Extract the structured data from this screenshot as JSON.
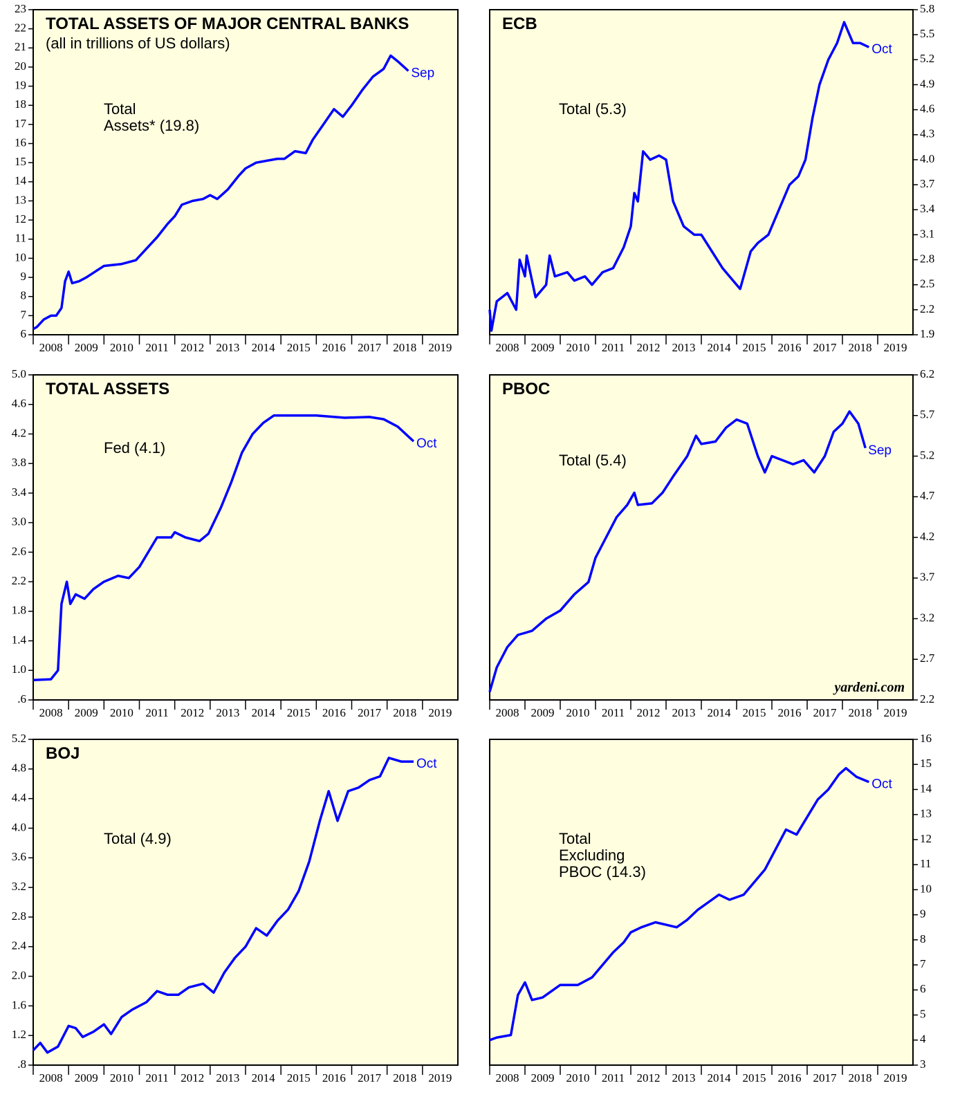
{
  "chart_data": [
    {
      "type": "line",
      "title": "TOTAL ASSETS OF MAJOR CENTRAL BANKS",
      "subtitle": "(all in trillions of US dollars)",
      "annotation": [
        "Total",
        "Assets* (19.8)"
      ],
      "end_label": "Sep",
      "color": "#0000ff",
      "background": "#ffffe0",
      "y_axis_side": "left",
      "x": [
        2008.0,
        2008.1,
        2008.3,
        2008.5,
        2008.65,
        2008.8,
        2008.9,
        2009.0,
        2009.1,
        2009.3,
        2009.5,
        2009.75,
        2010.0,
        2010.5,
        2010.9,
        2011.2,
        2011.5,
        2011.8,
        2012.0,
        2012.2,
        2012.5,
        2012.8,
        2013.0,
        2013.2,
        2013.5,
        2013.8,
        2014.0,
        2014.3,
        2014.6,
        2014.9,
        2015.1,
        2015.4,
        2015.7,
        2015.9,
        2016.2,
        2016.5,
        2016.75,
        2017.0,
        2017.3,
        2017.6,
        2017.9,
        2018.1,
        2018.3,
        2018.6
      ],
      "values": [
        6.3,
        6.4,
        6.8,
        7.0,
        7.0,
        7.4,
        8.8,
        9.3,
        8.7,
        8.8,
        9.0,
        9.3,
        9.6,
        9.7,
        9.9,
        10.5,
        11.1,
        11.8,
        12.2,
        12.8,
        13.0,
        13.1,
        13.3,
        13.1,
        13.6,
        14.3,
        14.7,
        15.0,
        15.1,
        15.2,
        15.2,
        15.6,
        15.5,
        16.2,
        17.0,
        17.8,
        17.4,
        18.0,
        18.8,
        19.5,
        19.9,
        20.6,
        20.3,
        19.8
      ],
      "xlim": [
        2008,
        2020
      ],
      "xticks": [
        2008,
        2009,
        2010,
        2011,
        2012,
        2013,
        2014,
        2015,
        2016,
        2017,
        2018,
        2019
      ],
      "ylim": [
        6,
        23
      ],
      "yticks": [
        6,
        7,
        8,
        9,
        10,
        11,
        12,
        13,
        14,
        15,
        16,
        17,
        18,
        19,
        20,
        21,
        22,
        23
      ]
    },
    {
      "type": "line",
      "title": "ECB",
      "annotation": [
        "Total (5.3)"
      ],
      "end_label": "Oct",
      "color": "#0000ff",
      "background": "#ffffe0",
      "y_axis_side": "right",
      "x": [
        2008.0,
        2008.05,
        2008.2,
        2008.5,
        2008.75,
        2008.85,
        2009.0,
        2009.05,
        2009.3,
        2009.6,
        2009.7,
        2009.85,
        2010.2,
        2010.4,
        2010.7,
        2010.9,
        2011.2,
        2011.5,
        2011.8,
        2012.0,
        2012.1,
        2012.2,
        2012.35,
        2012.55,
        2012.8,
        2013.0,
        2013.2,
        2013.5,
        2013.8,
        2014.0,
        2014.3,
        2014.6,
        2014.9,
        2015.1,
        2015.4,
        2015.6,
        2015.9,
        2016.2,
        2016.5,
        2016.75,
        2016.95,
        2017.15,
        2017.35,
        2017.6,
        2017.85,
        2018.05,
        2018.3,
        2018.5,
        2018.75
      ],
      "values": [
        2.2,
        1.95,
        2.3,
        2.4,
        2.2,
        2.8,
        2.6,
        2.85,
        2.35,
        2.5,
        2.85,
        2.6,
        2.65,
        2.55,
        2.6,
        2.5,
        2.65,
        2.7,
        2.95,
        3.2,
        3.6,
        3.5,
        4.1,
        4.0,
        4.05,
        4.0,
        3.5,
        3.2,
        3.1,
        3.1,
        2.9,
        2.7,
        2.55,
        2.45,
        2.9,
        3.0,
        3.1,
        3.4,
        3.7,
        3.8,
        4.0,
        4.5,
        4.9,
        5.2,
        5.4,
        5.65,
        5.4,
        5.4,
        5.35
      ],
      "xlim": [
        2008,
        2020
      ],
      "xticks": [
        2008,
        2009,
        2010,
        2011,
        2012,
        2013,
        2014,
        2015,
        2016,
        2017,
        2018,
        2019
      ],
      "ylim": [
        1.9,
        5.8
      ],
      "yticks": [
        1.9,
        2.2,
        2.5,
        2.8,
        3.1,
        3.4,
        3.7,
        {
          "value": 4,
          "label": "4.0"
        },
        4.3,
        4.6,
        4.9,
        5.2,
        5.5,
        5.8
      ]
    },
    {
      "type": "line",
      "title": "TOTAL ASSETS",
      "annotation": [
        "Fed (4.1)"
      ],
      "end_label": "Oct",
      "color": "#0000ff",
      "background": "#ffffe0",
      "y_axis_side": "left",
      "x": [
        2008.0,
        2008.5,
        2008.7,
        2008.8,
        2008.95,
        2009.05,
        2009.2,
        2009.45,
        2009.7,
        2010.0,
        2010.4,
        2010.7,
        2011.0,
        2011.25,
        2011.5,
        2011.9,
        2012.0,
        2012.3,
        2012.7,
        2012.95,
        2013.3,
        2013.6,
        2013.9,
        2014.2,
        2014.5,
        2014.8,
        2015.5,
        2016.0,
        2016.8,
        2017.5,
        2017.9,
        2018.3,
        2018.75
      ],
      "values": [
        0.87,
        0.88,
        1.0,
        1.9,
        2.2,
        1.9,
        2.03,
        1.97,
        2.1,
        2.2,
        2.28,
        2.25,
        2.4,
        2.6,
        2.8,
        2.8,
        2.87,
        2.8,
        2.75,
        2.85,
        3.2,
        3.55,
        3.95,
        4.2,
        4.35,
        4.45,
        4.45,
        4.45,
        4.42,
        4.43,
        4.4,
        4.3,
        4.1
      ],
      "xlim": [
        2008,
        2020
      ],
      "xticks": [
        2008,
        2009,
        2010,
        2011,
        2012,
        2013,
        2014,
        2015,
        2016,
        2017,
        2018,
        2019
      ],
      "ylim": [
        0.6,
        5.0
      ],
      "yticks": [
        {
          "value": 0.6,
          "label": ".6"
        },
        {
          "value": 1,
          "label": "1.0"
        },
        1.4,
        1.8,
        2.2,
        2.6,
        {
          "value": 3,
          "label": "3.0"
        },
        3.4,
        3.8,
        4.2,
        4.6,
        {
          "value": 5,
          "label": "5.0"
        }
      ]
    },
    {
      "type": "line",
      "title": "PBOC",
      "annotation": [
        "Total (5.4)"
      ],
      "end_label": "Sep",
      "source": "yardeni.com",
      "color": "#0000ff",
      "background": "#ffffe0",
      "y_axis_side": "right",
      "x": [
        2008.0,
        2008.2,
        2008.5,
        2008.8,
        2009.2,
        2009.6,
        2010.0,
        2010.4,
        2010.8,
        2011.0,
        2011.3,
        2011.6,
        2011.9,
        2012.1,
        2012.2,
        2012.6,
        2012.9,
        2013.2,
        2013.6,
        2013.85,
        2014.0,
        2014.4,
        2014.7,
        2015.0,
        2015.3,
        2015.6,
        2015.8,
        2016.0,
        2016.3,
        2016.6,
        2016.9,
        2017.2,
        2017.5,
        2017.75,
        2018.0,
        2018.2,
        2018.45,
        2018.65
      ],
      "values": [
        2.3,
        2.6,
        2.85,
        3.0,
        3.05,
        3.2,
        3.3,
        3.5,
        3.65,
        3.95,
        4.2,
        4.45,
        4.6,
        4.75,
        4.6,
        4.62,
        4.75,
        4.95,
        5.2,
        5.45,
        5.35,
        5.38,
        5.55,
        5.65,
        5.6,
        5.2,
        5.0,
        5.2,
        5.15,
        5.1,
        5.15,
        5.0,
        5.2,
        5.5,
        5.6,
        5.75,
        5.6,
        5.3
      ],
      "xlim": [
        2008,
        2020
      ],
      "xticks": [
        2008,
        2009,
        2010,
        2011,
        2012,
        2013,
        2014,
        2015,
        2016,
        2017,
        2018,
        2019
      ],
      "ylim": [
        2.2,
        6.2
      ],
      "yticks": [
        2.2,
        2.7,
        3.2,
        3.7,
        4.2,
        4.7,
        5.2,
        5.7,
        6.2
      ]
    },
    {
      "type": "line",
      "title": "BOJ",
      "annotation": [
        "Total (4.9)"
      ],
      "end_label": "Oct",
      "color": "#0000ff",
      "background": "#ffffe0",
      "y_axis_side": "left",
      "x": [
        2008.0,
        2008.2,
        2008.4,
        2008.7,
        2009.0,
        2009.2,
        2009.4,
        2009.7,
        2010.0,
        2010.2,
        2010.5,
        2010.8,
        2011.2,
        2011.5,
        2011.8,
        2012.1,
        2012.4,
        2012.8,
        2013.1,
        2013.4,
        2013.7,
        2014.0,
        2014.3,
        2014.6,
        2014.9,
        2015.2,
        2015.5,
        2015.8,
        2016.1,
        2016.35,
        2016.6,
        2016.9,
        2017.2,
        2017.5,
        2017.8,
        2018.05,
        2018.4,
        2018.75
      ],
      "values": [
        1.0,
        1.1,
        0.97,
        1.05,
        1.33,
        1.3,
        1.18,
        1.25,
        1.35,
        1.22,
        1.45,
        1.55,
        1.65,
        1.8,
        1.75,
        1.75,
        1.85,
        1.9,
        1.78,
        2.05,
        2.25,
        2.4,
        2.65,
        2.55,
        2.75,
        2.9,
        3.15,
        3.55,
        4.1,
        4.5,
        4.1,
        4.5,
        4.55,
        4.65,
        4.7,
        4.95,
        4.9,
        4.9
      ],
      "xlim": [
        2008,
        2020
      ],
      "xticks": [
        2008,
        2009,
        2010,
        2011,
        2012,
        2013,
        2014,
        2015,
        2016,
        2017,
        2018,
        2019
      ],
      "ylim": [
        0.8,
        5.2
      ],
      "yticks": [
        {
          "value": 0.8,
          "label": ".8"
        },
        1.2,
        1.6,
        {
          "value": 2,
          "label": "2.0"
        },
        2.4,
        2.8,
        3.2,
        3.6,
        {
          "value": 4,
          "label": "4.0"
        },
        4.4,
        4.8,
        5.2
      ]
    },
    {
      "type": "line",
      "annotation": [
        "Total",
        "Excluding",
        "PBOC (14.3)"
      ],
      "end_label": "Oct",
      "color": "#0000ff",
      "background": "#ffffe0",
      "y_axis_side": "right",
      "x": [
        2008.0,
        2008.2,
        2008.6,
        2008.8,
        2009.0,
        2009.2,
        2009.5,
        2009.8,
        2010.0,
        2010.5,
        2010.9,
        2011.2,
        2011.5,
        2011.8,
        2012.0,
        2012.3,
        2012.7,
        2013.0,
        2013.3,
        2013.6,
        2013.9,
        2014.2,
        2014.5,
        2014.8,
        2015.2,
        2015.5,
        2015.8,
        2016.1,
        2016.4,
        2016.7,
        2017.0,
        2017.3,
        2017.6,
        2017.9,
        2018.1,
        2018.4,
        2018.75
      ],
      "values": [
        4.0,
        4.1,
        4.2,
        5.8,
        6.3,
        5.6,
        5.7,
        6.0,
        6.2,
        6.2,
        6.5,
        7.0,
        7.5,
        7.9,
        8.3,
        8.5,
        8.7,
        8.6,
        8.5,
        8.8,
        9.2,
        9.5,
        9.8,
        9.6,
        9.8,
        10.3,
        10.8,
        11.6,
        12.4,
        12.2,
        12.9,
        13.6,
        14.0,
        14.6,
        14.85,
        14.5,
        14.3
      ],
      "xlim": [
        2008,
        2020
      ],
      "xticks": [
        2008,
        2009,
        2010,
        2011,
        2012,
        2013,
        2014,
        2015,
        2016,
        2017,
        2018,
        2019
      ],
      "ylim": [
        3,
        16
      ],
      "yticks": [
        3,
        4,
        5,
        6,
        7,
        8,
        9,
        10,
        11,
        12,
        13,
        14,
        15,
        16
      ]
    }
  ]
}
